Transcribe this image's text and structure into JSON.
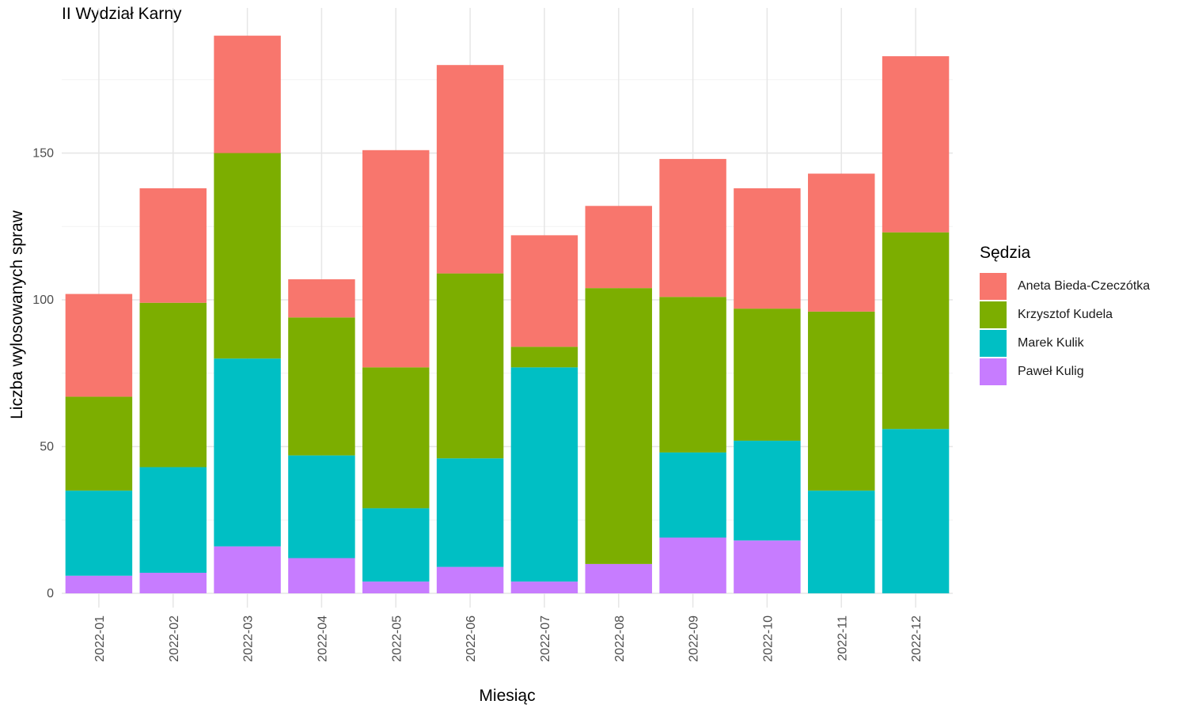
{
  "chart_data": {
    "type": "bar",
    "stacked": true,
    "title": "II Wydział Karny",
    "xlabel": "Miesiąc",
    "ylabel": "Liczba wylosowanych spraw",
    "ylim": [
      0,
      190
    ],
    "yticks": [
      0,
      50,
      100,
      150
    ],
    "grid": true,
    "legend": {
      "title": "Sędzia",
      "position": "right"
    },
    "categories": [
      "2022-01",
      "2022-02",
      "2022-03",
      "2022-04",
      "2022-05",
      "2022-06",
      "2022-07",
      "2022-08",
      "2022-09",
      "2022-10",
      "2022-11",
      "2022-12"
    ],
    "series": [
      {
        "name": "Paweł Kulig",
        "color": "#C77CFF",
        "values": [
          6,
          7,
          16,
          12,
          4,
          9,
          4,
          10,
          19,
          18,
          0,
          0
        ]
      },
      {
        "name": "Marek Kulik",
        "color": "#00BFC4",
        "values": [
          29,
          36,
          64,
          35,
          25,
          37,
          73,
          0,
          29,
          34,
          35,
          56
        ]
      },
      {
        "name": "Krzysztof Kudela",
        "color": "#7CAE00",
        "values": [
          32,
          56,
          70,
          47,
          48,
          63,
          7,
          94,
          53,
          45,
          61,
          67
        ]
      },
      {
        "name": "Aneta Bieda-Czeczótka",
        "color": "#F8766D",
        "values": [
          35,
          39,
          40,
          13,
          74,
          71,
          38,
          28,
          47,
          41,
          47,
          60
        ]
      }
    ]
  }
}
